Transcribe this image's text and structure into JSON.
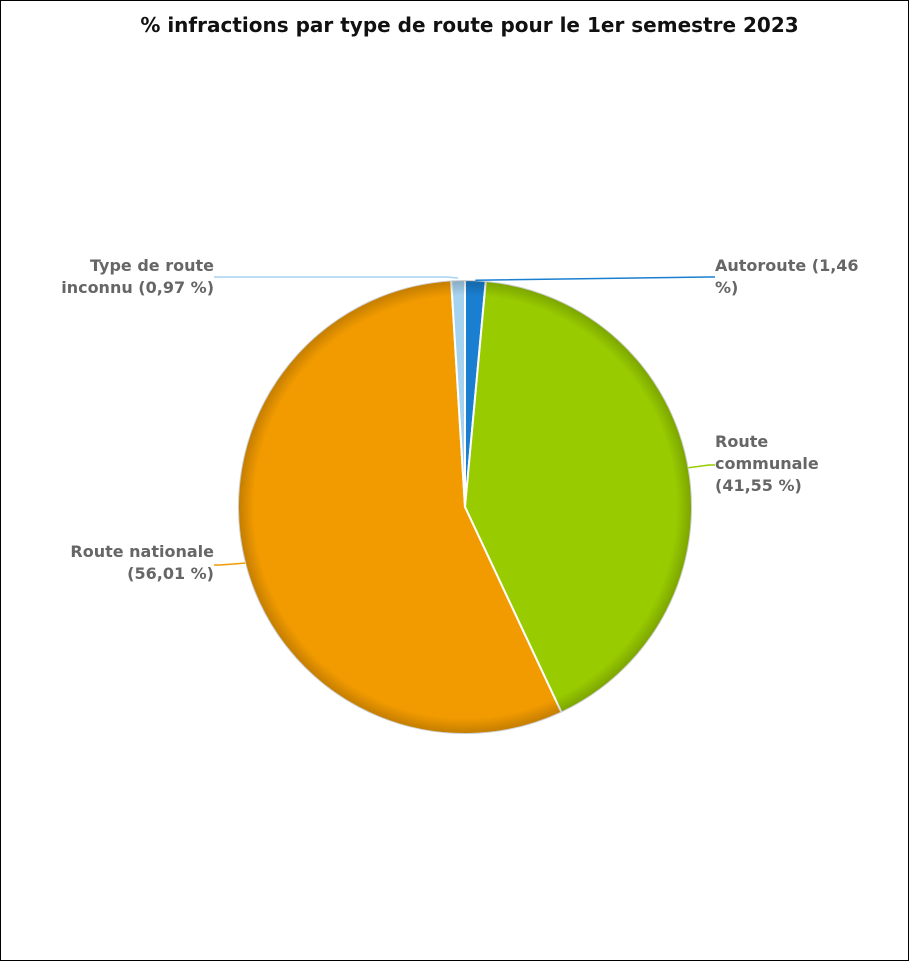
{
  "chart_data": {
    "type": "pie",
    "title": "% infractions par type de route pour le 1er semestre 2023",
    "slices": [
      {
        "label": "Autoroute",
        "value": 1.46,
        "display": "1,46",
        "color": "#1a7fd0",
        "label_lines": [
          "Autoroute (1,46",
          "%)"
        ]
      },
      {
        "label": "Route communale",
        "value": 41.55,
        "display": "41,55",
        "color": "#99cc00",
        "label_lines": [
          "Route",
          "communale",
          "(41,55 %)"
        ]
      },
      {
        "label": "Route nationale",
        "value": 56.01,
        "display": "56,01",
        "color": "#f29b00",
        "label_lines": [
          "Route nationale",
          "(56,01 %)"
        ]
      },
      {
        "label": "Type de route inconnu",
        "value": 0.97,
        "display": "0,97",
        "color": "#a6d4f0",
        "label_lines": [
          "Type de route",
          "inconnu (0,97 %)"
        ]
      }
    ]
  }
}
